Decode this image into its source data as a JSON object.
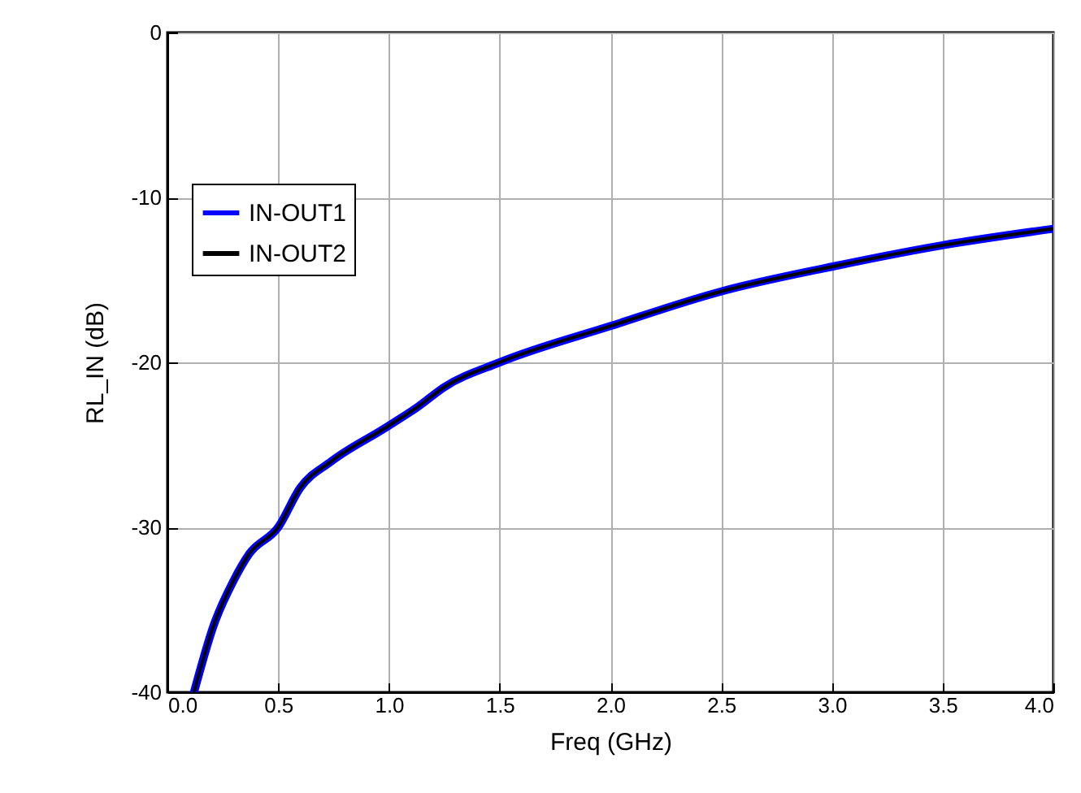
{
  "chart_data": {
    "type": "line",
    "xlabel": "Freq (GHz)",
    "ylabel": "RL_IN (dB)",
    "xlim": [
      0,
      4
    ],
    "ylim": [
      -40,
      0
    ],
    "xticks": [
      {
        "value": 0,
        "label": "0.0"
      },
      {
        "value": 0.5,
        "label": "0.5"
      },
      {
        "value": 1,
        "label": "1.0"
      },
      {
        "value": 1.5,
        "label": "1.5"
      },
      {
        "value": 2,
        "label": "2.0"
      },
      {
        "value": 2.5,
        "label": "2.5"
      },
      {
        "value": 3,
        "label": "3.0"
      },
      {
        "value": 3.5,
        "label": "3.5"
      },
      {
        "value": 4,
        "label": "4.0"
      }
    ],
    "yticks": [
      -40,
      -30,
      -20,
      -10,
      0
    ],
    "grid": true,
    "legend": "top left",
    "line_style": "solid",
    "x": [
      0.12,
      0.21,
      0.3,
      0.37,
      0.5,
      0.6,
      0.74,
      0.98,
      1.13,
      1.25,
      1.5,
      2.0,
      2.5,
      3.0,
      3.5,
      4.0
    ],
    "series": [
      {
        "name": "IN-OUT1",
        "color": "#0000ff",
        "values": [
          -40,
          -35.9,
          -33.2,
          -31.6,
          -30,
          -27.6,
          -26,
          -24,
          -22.7,
          -21.5,
          -20,
          -17.8,
          -15.7,
          -14.2,
          -12.9,
          -11.9
        ]
      },
      {
        "name": "IN-OUT2",
        "color": "#000000",
        "values": [
          -40,
          -35.9,
          -33.2,
          -31.6,
          -30,
          -27.6,
          -26,
          -24,
          -22.7,
          -21.5,
          -20,
          -17.8,
          -15.7,
          -14.2,
          -12.9,
          -11.9
        ]
      }
    ]
  }
}
